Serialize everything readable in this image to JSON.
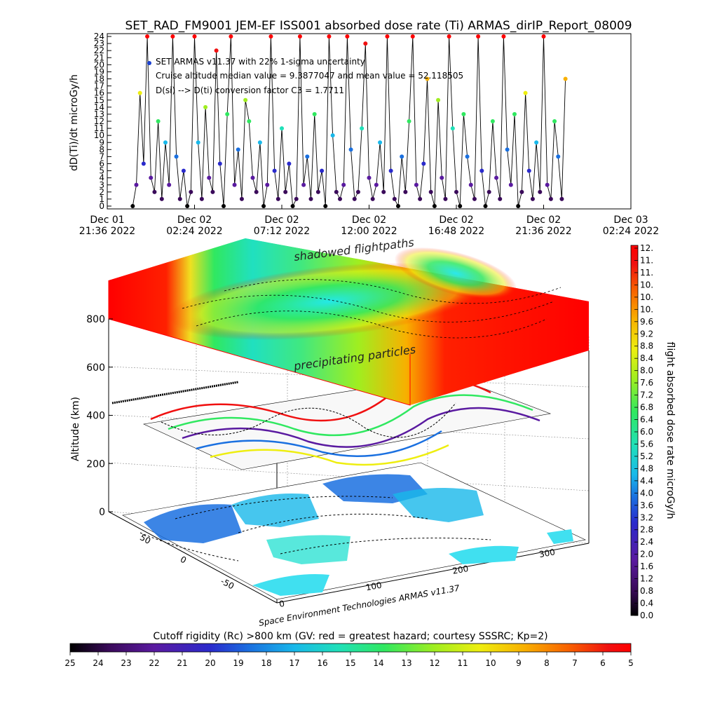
{
  "title": "SET_RAD_FM9001  JEM-EF ISS001 absorbed dose rate (Ti) ARMAS_dirIP_Report_08009",
  "chart_data": [
    {
      "type": "line",
      "ylabel": "dD(Ti)/dt microGy/h",
      "ylim": [
        0,
        24
      ],
      "yticks": [
        "0",
        "1",
        "2",
        "3",
        "4",
        "5",
        "6",
        "7",
        "8",
        "9",
        "10",
        "11",
        "12",
        "13",
        "14",
        "15",
        "16",
        "17",
        "18",
        "19",
        "20",
        "21",
        "22",
        "23",
        "24"
      ],
      "xlim_hours": [
        0,
        28.8
      ],
      "xticks": [
        {
          "line1": "Dec 01",
          "line2": "21:36 2022",
          "t": 0
        },
        {
          "line1": "Dec 02",
          "line2": "02:24 2022",
          "t": 4.8
        },
        {
          "line1": "Dec 02",
          "line2": "07:12 2022",
          "t": 9.6
        },
        {
          "line1": "Dec 02",
          "line2": "12:00 2022",
          "t": 14.4
        },
        {
          "line1": "Dec 02",
          "line2": "16:48 2022",
          "t": 19.2
        },
        {
          "line1": "Dec 02",
          "line2": "21:36 2022",
          "t": 24.0
        },
        {
          "line1": "Dec 03",
          "line2": "02:24 2022",
          "t": 28.8
        }
      ],
      "annotations": [
        "SET ARMAS v11.37 with 22% 1-sigma uncertainty",
        "Cruise altitude median value = 9.3877047 and mean value = 52.118505",
        "D(si) --> D(ti) conversion factor C3 = 1.7711"
      ],
      "series": [
        {
          "x": [
            1.4,
            1.6,
            1.8,
            2.0,
            2.2,
            2.4,
            2.6,
            2.8,
            3.0,
            3.2,
            3.4,
            3.6,
            3.8,
            4.0,
            4.2,
            4.4,
            4.6,
            4.8,
            5.0,
            5.2,
            5.4,
            5.6,
            5.8,
            6.0,
            6.2,
            6.4,
            6.6,
            6.8,
            7.0,
            7.2,
            7.4,
            7.6,
            7.8,
            8.0,
            8.2,
            8.4,
            8.6,
            8.8,
            9.0,
            9.2,
            9.4,
            9.6,
            9.8,
            10.0,
            10.2,
            10.4,
            10.6,
            10.8,
            11.0,
            11.2,
            11.4,
            11.6,
            11.8,
            12.0,
            12.2,
            12.4,
            12.6,
            12.8,
            13.0,
            13.2,
            13.4,
            13.6,
            13.8,
            14.0,
            14.2,
            14.4,
            14.6,
            14.8,
            15.0,
            15.2,
            15.4,
            15.6,
            15.8,
            16.0,
            16.2,
            16.4,
            16.6,
            16.8,
            17.0,
            17.2,
            17.4,
            17.6,
            17.8,
            18.0,
            18.2,
            18.4,
            18.6,
            18.8,
            19.0,
            19.2,
            19.4,
            19.6,
            19.8,
            20.0,
            20.2,
            20.4,
            20.6,
            20.8,
            21.0,
            21.2,
            21.4,
            21.6,
            21.8,
            22.0,
            22.2,
            22.4,
            22.6,
            22.8,
            23.0,
            23.2,
            23.4,
            23.6,
            23.8,
            24.0,
            24.2,
            24.4,
            24.6,
            24.8,
            25.0,
            25.2
          ],
          "y": [
            0,
            3,
            16,
            6,
            24,
            4,
            2,
            12,
            1,
            9,
            3,
            24,
            7,
            1,
            5,
            0,
            2,
            24,
            9,
            1,
            14,
            4,
            2,
            22,
            6,
            0,
            13,
            24,
            3,
            8,
            1,
            15,
            12,
            4,
            2,
            9,
            0,
            3,
            24,
            5,
            1,
            11,
            2,
            6,
            0,
            1,
            24,
            3,
            7,
            1,
            13,
            2,
            5,
            0,
            24,
            10,
            2,
            1,
            3,
            24,
            8,
            1,
            2,
            11,
            23,
            4,
            1,
            3,
            9,
            2,
            24,
            5,
            1,
            0,
            7,
            2,
            12,
            24,
            3,
            1,
            6,
            18,
            2,
            0,
            15,
            4,
            1,
            24,
            11,
            2,
            0,
            13,
            7,
            3,
            1,
            24,
            5,
            0,
            2,
            12,
            4,
            1,
            24,
            8,
            3,
            13,
            0,
            2,
            16,
            5,
            1,
            9,
            2,
            24,
            3,
            1,
            12,
            7,
            1,
            18
          ]
        }
      ]
    },
    {
      "type": "heatmap",
      "ylabel": "Altitude (km)",
      "zticks": [
        "0",
        "200",
        "400",
        "600",
        "800"
      ],
      "lon_ticks": [
        "0",
        "100",
        "200",
        "300"
      ],
      "lat_ticks": [
        "-50",
        "0",
        "50"
      ],
      "labels": [
        "shadowed flightpaths",
        "precipitating particles"
      ],
      "credit": "Space Environment Technologies ARMAS v11.37",
      "colorbar": {
        "label": "flight absorbed dose rate microGy/h",
        "ticks": [
          "0.0",
          "0.4",
          "0.8",
          "1.2",
          "1.6",
          "2.0",
          "2.4",
          "2.8",
          "3.2",
          "3.6",
          "4.0",
          "4.4",
          "4.8",
          "5.2",
          "5.6",
          "6.0",
          "6.4",
          "6.8",
          "7.2",
          "7.6",
          "8.0",
          "8.4",
          "8.8",
          "9.2",
          "9.6",
          "10.",
          "10.",
          "10.",
          "11.",
          "11.",
          "12."
        ]
      }
    },
    {
      "type": "heatmap",
      "title": "Cutoff rigidity (Rc) >800 km (GV: red = greatest hazard; courtesy SSSRC; Kp=2)",
      "colorbar_ticks": [
        "25",
        "24",
        "23",
        "22",
        "21",
        "20",
        "19",
        "18",
        "17",
        "16",
        "15",
        "14",
        "13",
        "12",
        "11",
        "10",
        "9",
        "8",
        "7",
        "6",
        "5"
      ]
    }
  ],
  "colors": {
    "rainbow": [
      "#000000",
      "#3a0a5a",
      "#5a1aa0",
      "#2a2acc",
      "#1a70e0",
      "#18b8ea",
      "#20e0b8",
      "#30e860",
      "#a0ee20",
      "#eeee10",
      "#f8b000",
      "#f86000",
      "#f01010",
      "#ff0000"
    ]
  }
}
